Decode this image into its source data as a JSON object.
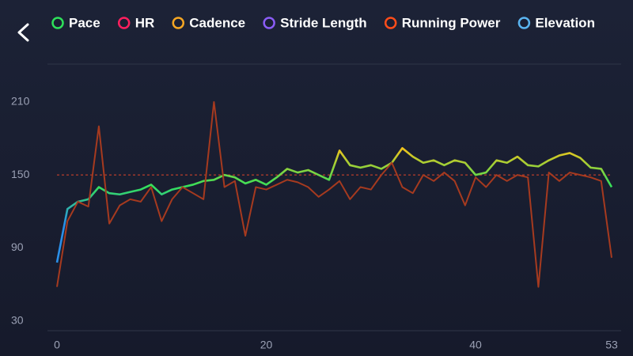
{
  "chart_data": {
    "type": "line",
    "x": [
      0,
      1,
      2,
      3,
      4,
      5,
      6,
      7,
      8,
      9,
      10,
      11,
      12,
      13,
      14,
      15,
      16,
      17,
      18,
      19,
      20,
      21,
      22,
      23,
      24,
      25,
      26,
      27,
      28,
      29,
      30,
      31,
      32,
      33,
      34,
      35,
      36,
      37,
      38,
      39,
      40,
      41,
      42,
      43,
      44,
      45,
      46,
      47,
      48,
      49,
      50,
      51,
      52,
      53
    ],
    "xlim": [
      0,
      53
    ],
    "xticks": [
      0,
      20,
      40,
      53
    ],
    "ylim": [
      22,
      232
    ],
    "yticks": [
      30,
      90,
      150,
      210
    ],
    "grid": false,
    "average": 150,
    "average_color": "#e0452a",
    "series": [
      {
        "name": "Pace",
        "color": "#2ee05a"
      },
      {
        "name": "HR",
        "color": "#ff1f5e"
      },
      {
        "name": "Cadence",
        "color": "#f5a623",
        "gradient": [
          "#2a8fe8",
          "#2a8fe8",
          "#35e05a",
          "#f2c21b"
        ],
        "values": [
          78,
          122,
          128,
          130,
          140,
          135,
          134,
          136,
          138,
          142,
          134,
          138,
          140,
          142,
          145,
          146,
          150,
          148,
          143,
          146,
          142,
          148,
          155,
          152,
          154,
          150,
          146,
          170,
          158,
          156,
          158,
          155,
          160,
          172,
          165,
          160,
          162,
          158,
          162,
          160,
          150,
          152,
          162,
          160,
          165,
          158,
          157,
          162,
          166,
          168,
          164,
          156,
          155,
          140
        ]
      },
      {
        "name": "Stride Length",
        "color": "#8a5cf5"
      },
      {
        "name": "Running Power",
        "color": "#ff4d1a",
        "line_color": "#a63a1f",
        "values": [
          58,
          112,
          128,
          124,
          190,
          110,
          125,
          130,
          128,
          140,
          112,
          130,
          140,
          135,
          130,
          210,
          140,
          145,
          100,
          140,
          138,
          142,
          146,
          144,
          140,
          132,
          138,
          145,
          130,
          140,
          138,
          150,
          160,
          140,
          135,
          150,
          145,
          152,
          145,
          125,
          148,
          140,
          150,
          145,
          150,
          148,
          58,
          152,
          145,
          152,
          150,
          148,
          145,
          82
        ]
      },
      {
        "name": "Elevation",
        "color": "#5ab4f0"
      }
    ]
  }
}
